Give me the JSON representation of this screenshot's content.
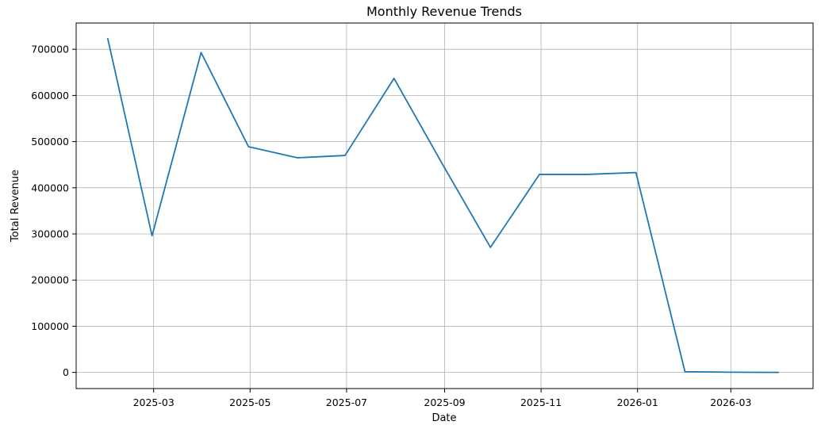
{
  "chart_data": {
    "type": "line",
    "title": "Monthly Revenue Trends",
    "xlabel": "Date",
    "ylabel": "Total Revenue",
    "grid": true,
    "xlim": [
      "2025-01-11",
      "2026-04-22"
    ],
    "ylim": [
      -35000,
      757000
    ],
    "x_ticks": [
      "2025-03",
      "2025-05",
      "2025-07",
      "2025-09",
      "2025-11",
      "2026-01",
      "2026-03"
    ],
    "y_ticks": [
      0,
      100000,
      200000,
      300000,
      400000,
      500000,
      600000,
      700000
    ],
    "line_color": "#1f77b4",
    "series": [
      {
        "x": [
          "2025-01-31",
          "2025-02-28",
          "2025-03-31",
          "2025-04-30",
          "2025-05-31",
          "2025-06-30",
          "2025-07-31",
          "2025-08-31",
          "2025-09-30",
          "2025-10-31",
          "2025-11-30",
          "2025-12-31",
          "2026-01-31",
          "2026-02-28",
          "2026-03-31"
        ],
        "values": [
          723000,
          296000,
          693000,
          489000,
          465000,
          470000,
          637000,
          449000,
          271000,
          429000,
          429000,
          433000,
          1500,
          500,
          0
        ]
      }
    ]
  }
}
